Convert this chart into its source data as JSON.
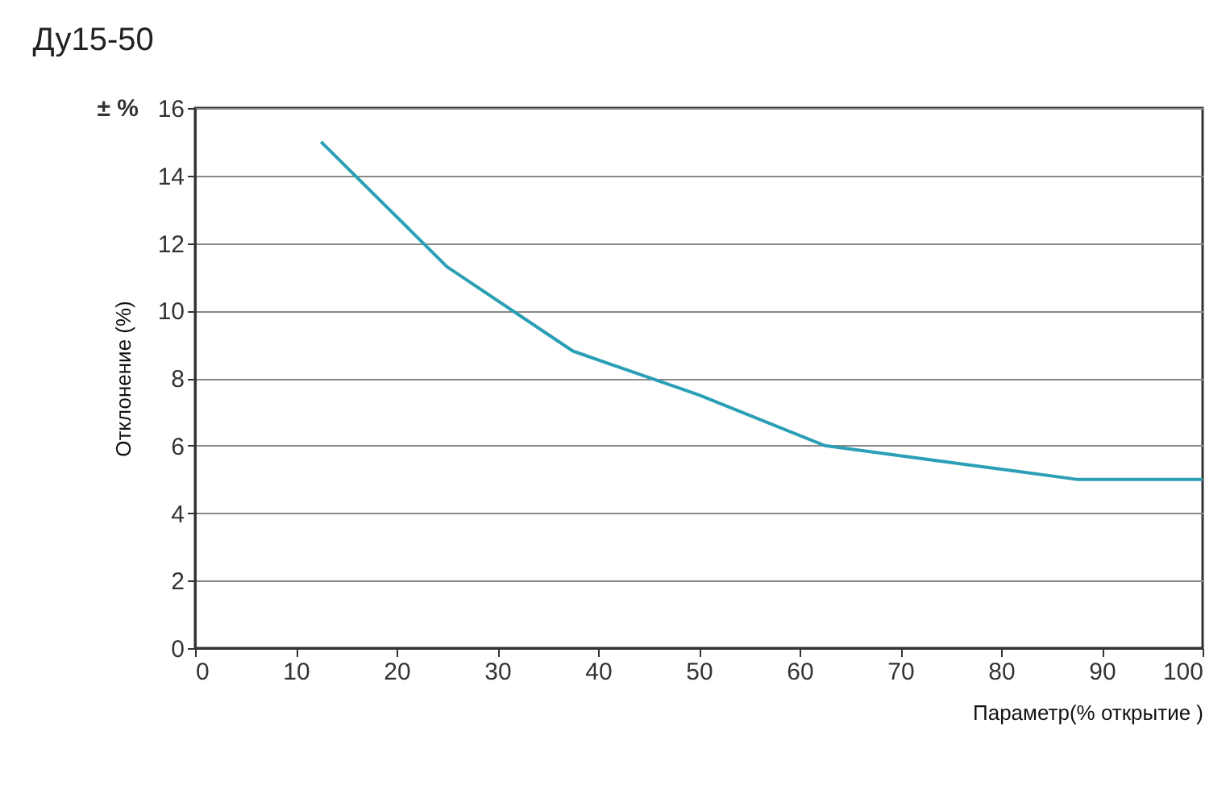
{
  "chart_data": {
    "type": "line",
    "title": "Ду15-50",
    "xlabel": "Параметр(% открытие )",
    "ylabel": "Отклонение (%)",
    "annotations": [
      "± %"
    ],
    "x": [
      12.5,
      25,
      37.5,
      50,
      62.5,
      75,
      87.5,
      100
    ],
    "series": [
      {
        "color": "#2a9fb5",
        "values": [
          15,
          11.3,
          8.8,
          7.5,
          6,
          5.5,
          5,
          5
        ]
      }
    ],
    "xlim": [
      0,
      100
    ],
    "xticks": [
      0,
      10,
      20,
      30,
      40,
      50,
      60,
      70,
      80,
      90,
      100
    ],
    "ylim": [
      0,
      16
    ],
    "yticks": [
      0,
      2,
      4,
      6,
      8,
      10,
      12,
      14,
      16
    ],
    "grid": "y",
    "legend": false,
    "marker": "none",
    "line_style": "solid"
  }
}
